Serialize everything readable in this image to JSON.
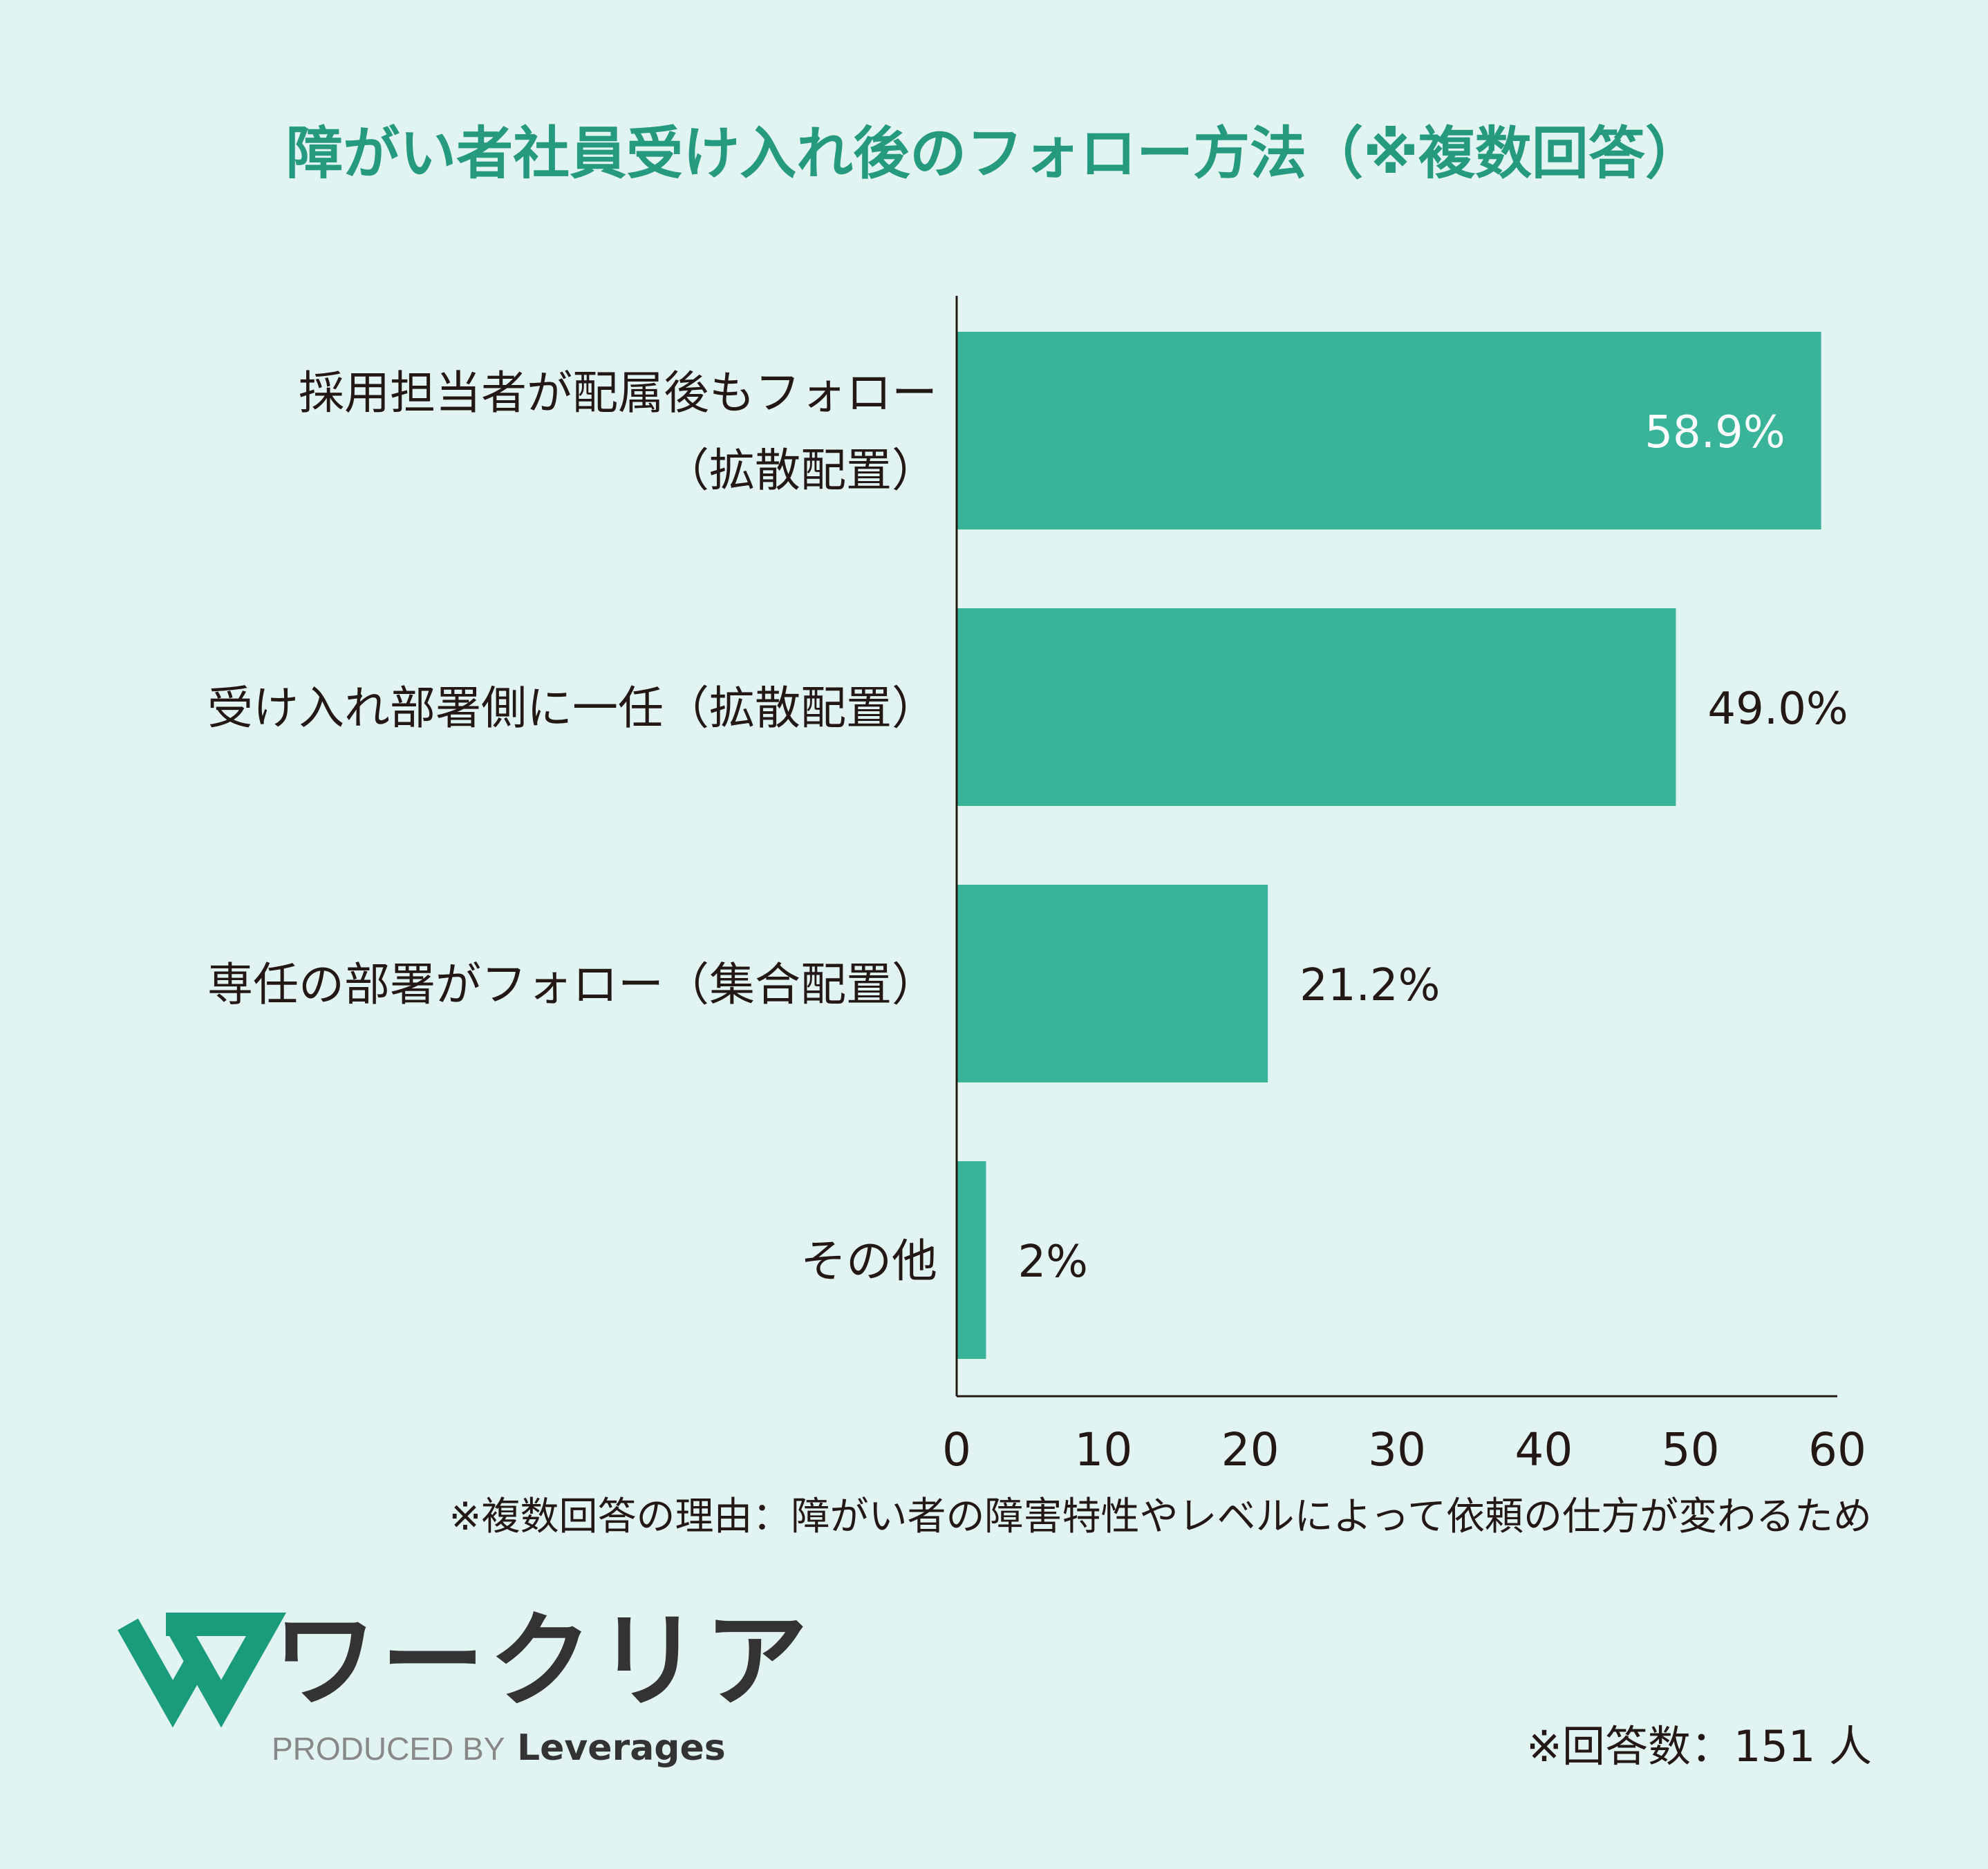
{
  "chart_data": {
    "type": "bar",
    "orientation": "horizontal",
    "title": "障がい者社員受け入れ後のフォロー方法（※複数回答）",
    "categories": [
      [
        "採用担当者が配属後もフォロー",
        "（拡散配置）"
      ],
      [
        "受け入れ部署側に一任（拡散配置）"
      ],
      [
        "専任の部署がフォロー（集合配置）"
      ],
      [
        "その他"
      ]
    ],
    "values": [
      58.9,
      49.0,
      21.2,
      2
    ],
    "value_labels": [
      "58.9%",
      "49.0%",
      "21.2%",
      "2%"
    ],
    "xlim": [
      0,
      60
    ],
    "xticks": [
      0,
      10,
      20,
      30,
      40,
      50,
      60
    ],
    "grid": false,
    "colors": {
      "bar": "#39b499",
      "title": "#259a7e",
      "text": "#231815",
      "background": "#e2f4f1",
      "inside_label": "#ffffff"
    }
  },
  "footnote": "※複数回答の理由：障がい者の障害特性やレベルによって依頼の仕方が変わるため",
  "respondents": "※回答数：151 人",
  "logo": {
    "name": "ワークリア",
    "produced_by": "PRODUCED BY",
    "brand": "Leverages",
    "colors": {
      "mark": "#1a9b7c",
      "text": "#333333",
      "produced": "#888888"
    }
  }
}
